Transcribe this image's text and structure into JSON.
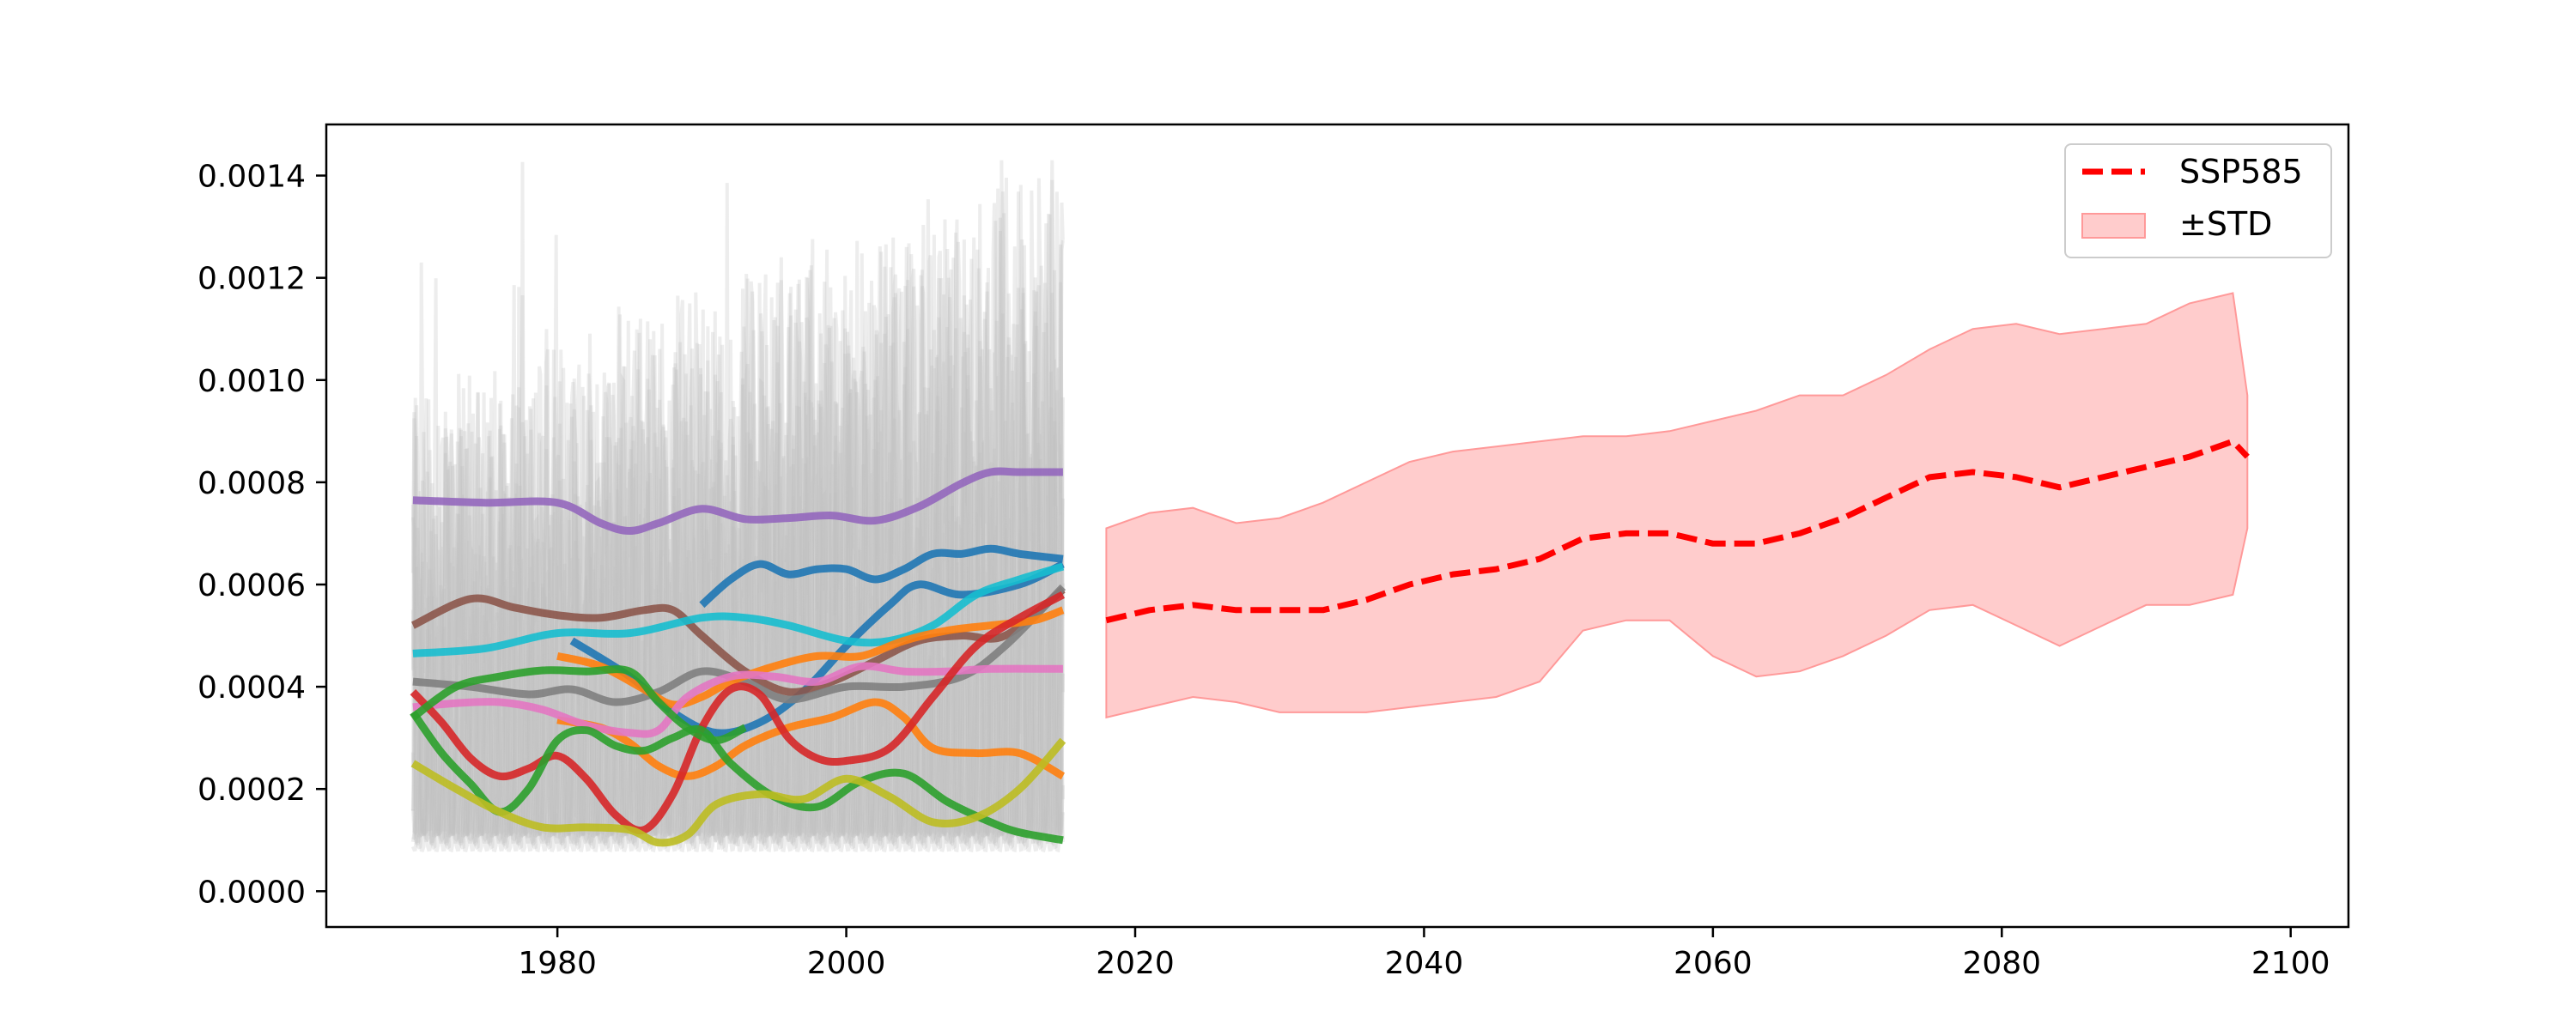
{
  "chart_data": {
    "type": "line",
    "title": "",
    "xlabel": "",
    "ylabel": "",
    "xlim": [
      1964,
      2104
    ],
    "ylim": [
      -7e-05,
      0.0015
    ],
    "x_ticks": [
      1980,
      2000,
      2020,
      2040,
      2060,
      2080,
      2100
    ],
    "x_tick_labels": [
      "1980",
      "2000",
      "2020",
      "2040",
      "2060",
      "2080",
      "2100"
    ],
    "y_ticks": [
      0,
      0.0002,
      0.0004,
      0.0006,
      0.0008,
      0.001,
      0.0012,
      0.0014
    ],
    "y_tick_labels": [
      "0.0000",
      "0.0002",
      "0.0004",
      "0.0006",
      "0.0008",
      "0.0010",
      "0.0012",
      "0.0014"
    ],
    "grid": false,
    "legend_position": "top-right",
    "legend": [
      {
        "label": "SSP585",
        "kind": "line",
        "color": "#ff0000",
        "dashed": true
      },
      {
        "label": "±STD",
        "kind": "patch",
        "color": "#ffcccc"
      }
    ],
    "historical_background": {
      "x_range": [
        1970,
        2015
      ],
      "y_envelope_low": 0.0,
      "y_envelope_high": 0.00143,
      "color": "#bdbdbd"
    },
    "historical_series": [
      {
        "color": "#9467bd",
        "x": [
          1970,
          1975,
          1980,
          1983,
          1985,
          1987,
          1990,
          1993,
          1996,
          1999,
          2002,
          2005,
          2008,
          2010,
          2012,
          2015
        ],
        "values": [
          0.000765,
          0.00076,
          0.00076,
          0.00072,
          0.000705,
          0.00072,
          0.000748,
          0.000728,
          0.00073,
          0.000735,
          0.000725,
          0.000752,
          0.000798,
          0.00082,
          0.00082,
          0.00082
        ]
      },
      {
        "color": "#1f77b4",
        "x": [
          1990,
          1992,
          1994,
          1996,
          1998,
          2000,
          2002,
          2004,
          2006,
          2008,
          2010,
          2012,
          2015
        ],
        "values": [
          0.00056,
          0.00061,
          0.00064,
          0.00062,
          0.00063,
          0.00063,
          0.00061,
          0.00063,
          0.00066,
          0.00066,
          0.00067,
          0.00066,
          0.00065
        ]
      },
      {
        "color": "#1f77b4",
        "x": [
          1981,
          1985,
          1988,
          1991,
          1994,
          1997,
          2000,
          2003,
          2005,
          2008,
          2012,
          2015
        ],
        "values": [
          0.00049,
          0.00042,
          0.00035,
          0.00031,
          0.00033,
          0.00039,
          0.00048,
          0.00056,
          0.0006,
          0.00058,
          0.0006,
          0.00064
        ]
      },
      {
        "color": "#8c564b",
        "x": [
          1970,
          1974,
          1977,
          1980,
          1983,
          1986,
          1988,
          1990,
          1993,
          1996,
          1999,
          2002,
          2005,
          2008,
          2011,
          2015
        ],
        "values": [
          0.00052,
          0.000572,
          0.000555,
          0.00054,
          0.000535,
          0.00055,
          0.00055,
          0.0005,
          0.00043,
          0.00039,
          0.00041,
          0.00045,
          0.00049,
          0.0005,
          0.0005,
          0.00059
        ]
      },
      {
        "color": "#17becf",
        "x": [
          1970,
          1975,
          1980,
          1985,
          1990,
          1993,
          1996,
          2000,
          2003,
          2006,
          2009,
          2012,
          2015
        ],
        "values": [
          0.000465,
          0.000475,
          0.000505,
          0.000505,
          0.000535,
          0.000535,
          0.00052,
          0.00049,
          0.00049,
          0.00052,
          0.00058,
          0.00061,
          0.000635
        ]
      },
      {
        "color": "#7f7f7f",
        "x": [
          1970,
          1974,
          1978,
          1981,
          1984,
          1987,
          1990,
          1993,
          1996,
          2000,
          2004,
          2008,
          2011,
          2015
        ],
        "values": [
          0.00041,
          0.0004,
          0.000385,
          0.000395,
          0.00037,
          0.00039,
          0.00043,
          0.00041,
          0.000375,
          0.0004,
          0.0004,
          0.00042,
          0.00048,
          0.000595
        ]
      },
      {
        "color": "#ff7f0e",
        "x": [
          1980,
          1983,
          1986,
          1988,
          1990,
          1992,
          1995,
          1998,
          2001,
          2004,
          2007,
          2010,
          2013,
          2015
        ],
        "values": [
          0.00046,
          0.00044,
          0.000395,
          0.000365,
          0.00038,
          0.00041,
          0.00044,
          0.00046,
          0.00046,
          0.00049,
          0.00051,
          0.00052,
          0.00053,
          0.00055
        ]
      },
      {
        "color": "#ff7f0e",
        "x": [
          1980,
          1983,
          1985,
          1987,
          1989,
          1991,
          1993,
          1996,
          1999,
          2002,
          2004,
          2006,
          2009,
          2012,
          2015
        ],
        "values": [
          0.000335,
          0.00032,
          0.00029,
          0.000245,
          0.000225,
          0.000245,
          0.000285,
          0.00032,
          0.00034,
          0.00037,
          0.00034,
          0.00028,
          0.00027,
          0.00027,
          0.000225
        ]
      },
      {
        "color": "#e377c2",
        "x": [
          1970,
          1973,
          1976,
          1979,
          1982,
          1985,
          1987,
          1989,
          1992,
          1995,
          1998,
          2001,
          2004,
          2007,
          2010,
          2015
        ],
        "values": [
          0.00036,
          0.000368,
          0.00037,
          0.000355,
          0.000325,
          0.00031,
          0.000315,
          0.00038,
          0.00042,
          0.00042,
          0.00041,
          0.00044,
          0.00043,
          0.00043,
          0.000435,
          0.000435
        ]
      },
      {
        "color": "#d62728",
        "x": [
          1970,
          1972,
          1974,
          1976,
          1978,
          1980,
          1982,
          1984,
          1986,
          1988,
          1990,
          1992,
          1994,
          1996,
          1998,
          2000,
          2003,
          2006,
          2009,
          2012,
          2015
        ],
        "values": [
          0.00039,
          0.00033,
          0.00026,
          0.000225,
          0.00024,
          0.000265,
          0.00022,
          0.00015,
          0.00012,
          0.00019,
          0.00032,
          0.000395,
          0.000385,
          0.0003,
          0.00026,
          0.000255,
          0.00028,
          0.00038,
          0.00048,
          0.000535,
          0.00058
        ]
      },
      {
        "color": "#2ca02c",
        "x": [
          1970,
          1972,
          1974,
          1976,
          1978,
          1980,
          1982,
          1984,
          1986,
          1988,
          1990,
          1992,
          1995,
          1998,
          2001,
          2004,
          2007,
          2010,
          2012,
          2015
        ],
        "values": [
          0.00035,
          0.00027,
          0.00021,
          0.000155,
          0.0002,
          0.000295,
          0.000315,
          0.000285,
          0.000275,
          0.0003,
          0.000315,
          0.00025,
          0.000185,
          0.000165,
          0.000215,
          0.00023,
          0.000175,
          0.000135,
          0.000115,
          0.0001
        ]
      },
      {
        "color": "#2ca02c",
        "x": [
          1970,
          1973,
          1976,
          1979,
          1982,
          1985,
          1987,
          1989,
          1991,
          1993
        ],
        "values": [
          0.00034,
          0.0004,
          0.00042,
          0.000432,
          0.00043,
          0.00043,
          0.00037,
          0.00032,
          0.000295,
          0.00032
        ]
      },
      {
        "color": "#bcbd22",
        "x": [
          1970,
          1973,
          1976,
          1979,
          1982,
          1985,
          1987,
          1989,
          1991,
          1994,
          1997,
          2000,
          2003,
          2006,
          2009,
          2012,
          2015
        ],
        "values": [
          0.00025,
          0.0002,
          0.000155,
          0.000125,
          0.000125,
          0.00012,
          9.5e-05,
          0.00011,
          0.00017,
          0.00019,
          0.00018,
          0.00022,
          0.000185,
          0.000135,
          0.000145,
          0.0002,
          0.000295
        ]
      }
    ],
    "series": [
      {
        "name": "SSP585",
        "color": "#ff0000",
        "x": [
          2018,
          2021,
          2024,
          2027,
          2030,
          2033,
          2036,
          2039,
          2042,
          2045,
          2048,
          2051,
          2054,
          2057,
          2060,
          2063,
          2066,
          2069,
          2072,
          2075,
          2078,
          2081,
          2084,
          2087,
          2090,
          2093,
          2096,
          2097
        ],
        "values": [
          0.00053,
          0.00055,
          0.00056,
          0.00055,
          0.00055,
          0.00055,
          0.00057,
          0.0006,
          0.00062,
          0.00063,
          0.00065,
          0.00069,
          0.0007,
          0.0007,
          0.00068,
          0.00068,
          0.0007,
          0.00073,
          0.00077,
          0.00081,
          0.00082,
          0.00081,
          0.00079,
          0.00081,
          0.00083,
          0.00085,
          0.00088,
          0.00085
        ]
      }
    ],
    "std_band": {
      "name": "±STD",
      "color": "#ffcccc",
      "x": [
        2018,
        2021,
        2024,
        2027,
        2030,
        2033,
        2036,
        2039,
        2042,
        2045,
        2048,
        2051,
        2054,
        2057,
        2060,
        2063,
        2066,
        2069,
        2072,
        2075,
        2078,
        2081,
        2084,
        2087,
        2090,
        2093,
        2096,
        2097
      ],
      "lower": [
        0.00034,
        0.00036,
        0.00038,
        0.00037,
        0.00035,
        0.00035,
        0.00035,
        0.00036,
        0.00037,
        0.00038,
        0.00041,
        0.00051,
        0.00053,
        0.00053,
        0.00046,
        0.00042,
        0.00043,
        0.00046,
        0.0005,
        0.00055,
        0.00056,
        0.00052,
        0.00048,
        0.00052,
        0.00056,
        0.00056,
        0.00058,
        0.00071
      ],
      "upper": [
        0.00071,
        0.00074,
        0.00075,
        0.00072,
        0.00073,
        0.00076,
        0.0008,
        0.00084,
        0.00086,
        0.00087,
        0.00088,
        0.00089,
        0.00089,
        0.0009,
        0.00092,
        0.00094,
        0.00097,
        0.00097,
        0.00101,
        0.00106,
        0.0011,
        0.00111,
        0.00109,
        0.0011,
        0.00111,
        0.00115,
        0.00117,
        0.00097
      ]
    }
  }
}
